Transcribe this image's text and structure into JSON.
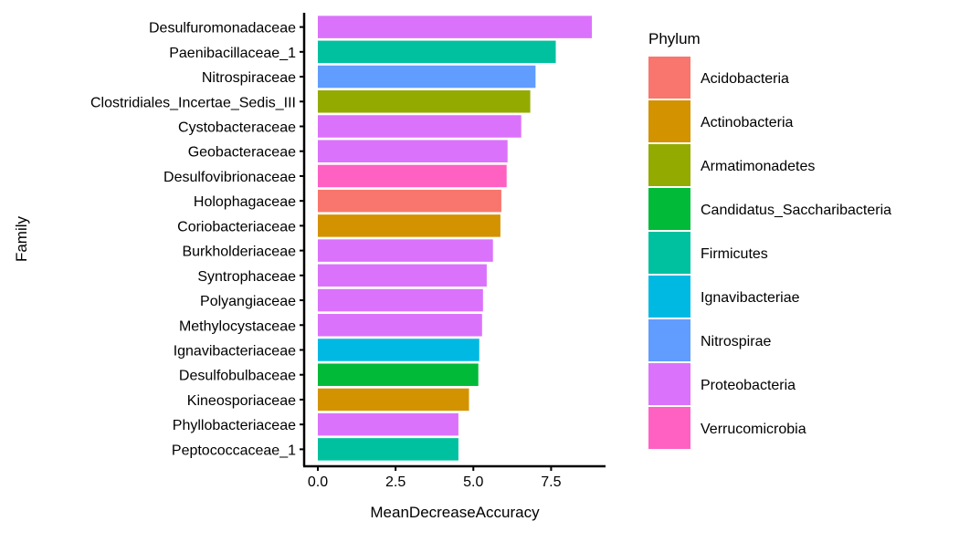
{
  "chart_data": {
    "type": "bar",
    "orientation": "horizontal",
    "title": "",
    "xlabel": "MeanDecreaseAccuracy",
    "ylabel": "Family",
    "xlim": [
      -0.44,
      9.25
    ],
    "xticks": [
      0,
      2.5,
      5,
      7.5
    ],
    "xtick_labels": [
      "0.0",
      "2.5",
      "5.0",
      "7.5"
    ],
    "grid": false,
    "legend": {
      "title": "Phylum",
      "placement": "right",
      "entries": [
        {
          "label": "Acidobacteria",
          "color": "#F8766D"
        },
        {
          "label": "Actinobacteria",
          "color": "#D39200"
        },
        {
          "label": "Armatimonadetes",
          "color": "#93AA00"
        },
        {
          "label": "Candidatus_Saccharibacteria",
          "color": "#00BA38"
        },
        {
          "label": "Firmicutes",
          "color": "#00C19F"
        },
        {
          "label": "Ignavibacteriae",
          "color": "#00B9E3"
        },
        {
          "label": "Nitrospirae",
          "color": "#619CFF"
        },
        {
          "label": "Proteobacteria",
          "color": "#DB72FB"
        },
        {
          "label": "Verrucomicrobia",
          "color": "#FF61C3"
        }
      ]
    },
    "bars": [
      {
        "family": "Desulfuromonadaceae",
        "value": 8.81,
        "phylum": "Proteobacteria"
      },
      {
        "family": "Paenibacillaceae_1",
        "value": 7.65,
        "phylum": "Firmicutes"
      },
      {
        "family": "Nitrospiraceae",
        "value": 7.0,
        "phylum": "Nitrospirae"
      },
      {
        "family": "Clostridiales_Incertae_Sedis_III",
        "value": 6.83,
        "phylum": "Armatimonadetes"
      },
      {
        "family": "Cystobacteraceae",
        "value": 6.54,
        "phylum": "Proteobacteria"
      },
      {
        "family": "Geobacteraceae",
        "value": 6.1,
        "phylum": "Proteobacteria"
      },
      {
        "family": "Desulfovibrionaceae",
        "value": 6.07,
        "phylum": "Verrucomicrobia"
      },
      {
        "family": "Holophagaceae",
        "value": 5.9,
        "phylum": "Acidobacteria"
      },
      {
        "family": "Coriobacteriaceae",
        "value": 5.87,
        "phylum": "Actinobacteria"
      },
      {
        "family": "Burkholderiaceae",
        "value": 5.63,
        "phylum": "Proteobacteria"
      },
      {
        "family": "Syntrophaceae",
        "value": 5.43,
        "phylum": "Proteobacteria"
      },
      {
        "family": "Polyangiaceae",
        "value": 5.31,
        "phylum": "Proteobacteria"
      },
      {
        "family": "Methylocystaceae",
        "value": 5.28,
        "phylum": "Proteobacteria"
      },
      {
        "family": "Ignavibacteriaceae",
        "value": 5.19,
        "phylum": "Ignavibacteriae"
      },
      {
        "family": "Desulfobulbaceae",
        "value": 5.16,
        "phylum": "Candidatus_Saccharibacteria"
      },
      {
        "family": "Kineosporiaceae",
        "value": 4.86,
        "phylum": "Actinobacteria"
      },
      {
        "family": "Phyllobacteriaceae",
        "value": 4.52,
        "phylum": "Proteobacteria"
      },
      {
        "family": "Peptococcaceae_1",
        "value": 4.52,
        "phylum": "Firmicutes"
      }
    ]
  }
}
